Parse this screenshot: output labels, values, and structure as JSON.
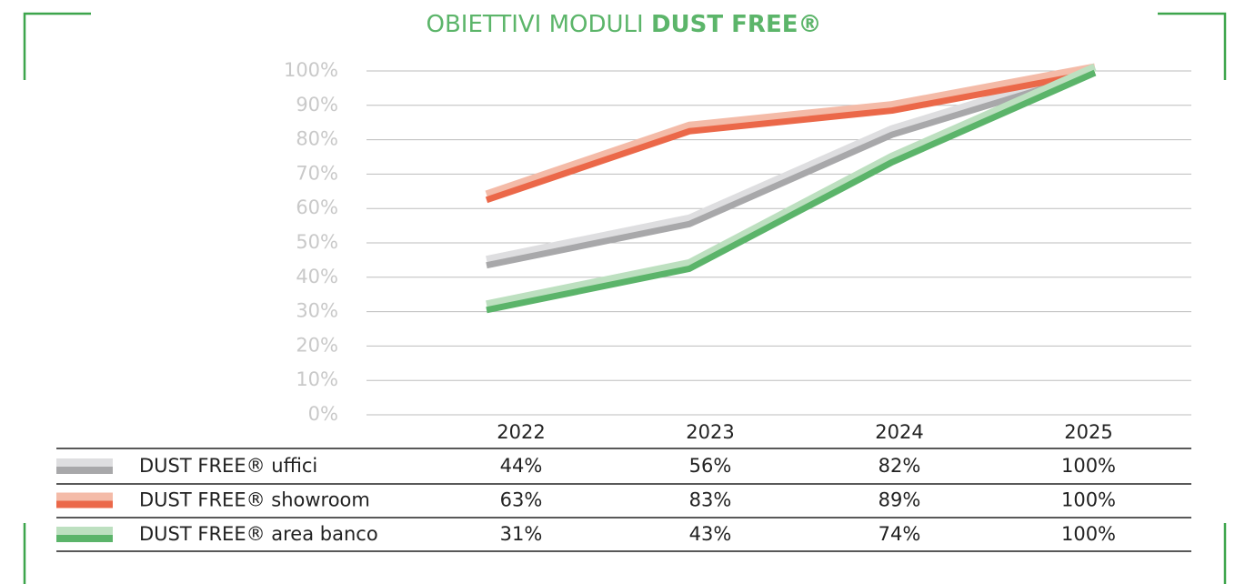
{
  "chart_data": {
    "type": "line",
    "title": "OBIETTIVI MODULI",
    "title_bold": "DUST FREE®",
    "categories": [
      "2022",
      "2023",
      "2024",
      "2025"
    ],
    "series": [
      {
        "name": "DUST FREE® uffici",
        "color": "#a8a8aa",
        "light_color": "#dedee0",
        "values": [
          44,
          56,
          82,
          100
        ],
        "value_labels": [
          "44%",
          "56%",
          "82%",
          "100%"
        ]
      },
      {
        "name": "DUST FREE® showroom",
        "color": "#eb6849",
        "light_color": "#f4bba8",
        "values": [
          63,
          83,
          89,
          100
        ],
        "value_labels": [
          "63%",
          "83%",
          "89%",
          "100%"
        ]
      },
      {
        "name": "DUST FREE® area banco",
        "color": "#5bb46a",
        "light_color": "#bde0c0",
        "values": [
          31,
          43,
          74,
          100
        ],
        "value_labels": [
          "31%",
          "43%",
          "74%",
          "100%"
        ]
      }
    ],
    "ylim": [
      0,
      100
    ],
    "yticks": [
      {
        "value": 0,
        "label": "0%"
      },
      {
        "value": 10,
        "label": "10%"
      },
      {
        "value": 20,
        "label": "20%"
      },
      {
        "value": 30,
        "label": "30%"
      },
      {
        "value": 40,
        "label": "40%"
      },
      {
        "value": 50,
        "label": "50%"
      },
      {
        "value": 60,
        "label": "60%"
      },
      {
        "value": 70,
        "label": "70%"
      },
      {
        "value": 80,
        "label": "80%"
      },
      {
        "value": 90,
        "label": "90%"
      },
      {
        "value": 100,
        "label": "100%"
      }
    ],
    "grid": true
  }
}
